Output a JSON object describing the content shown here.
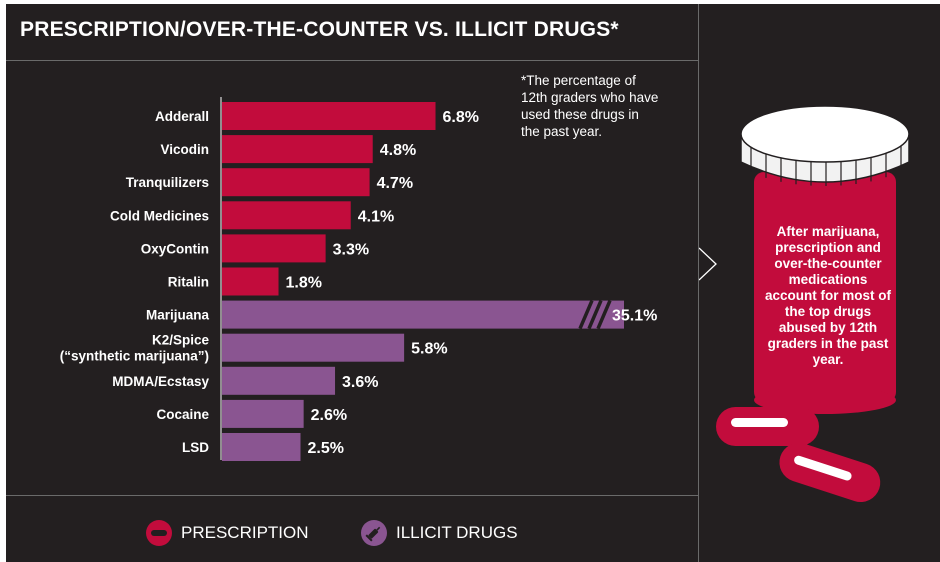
{
  "title": "PRESCRIPTION/OVER-THE-COUNTER VS. ILLICIT DRUGS*",
  "footnote": "*The percentage of\n12th graders who have\nused these drugs in\nthe past year.",
  "callout": "After marijuana, prescription and over-the-counter medications account for most of the top drugs abused by 12th graders in the past year.",
  "colors": {
    "prescription": "#c20c3c",
    "illicit": "#8a5591",
    "background": "#231f20",
    "text": "#ffffff"
  },
  "legend": {
    "prescription_label": "PRESCRIPTION",
    "prescription_icon": "pill-capsule-icon",
    "illicit_label": "ILLICIT DRUGS",
    "illicit_icon": "syringe-icon"
  },
  "chart_data": {
    "type": "bar",
    "orientation": "horizontal",
    "unit": "%",
    "title": "PRESCRIPTION/OVER-THE-COUNTER VS. ILLICIT DRUGS*",
    "categories": [
      "Adderall",
      "Vicodin",
      "Tranquilizers",
      "Cold Medicines",
      "OxyContin",
      "Ritalin",
      "Marijuana",
      "K2/Spice\n(“synthetic marijuana”)",
      "MDMA/Ecstasy",
      "Cocaine",
      "LSD"
    ],
    "values": [
      6.8,
      4.8,
      4.7,
      4.1,
      3.3,
      1.8,
      35.1,
      5.8,
      3.6,
      2.6,
      2.5
    ],
    "labels": [
      "6.8%",
      "4.8%",
      "4.7%",
      "4.1%",
      "3.3%",
      "1.8%",
      "35.1%",
      "5.8%",
      "3.6%",
      "2.6%",
      "2.5%"
    ],
    "groups": [
      "prescription",
      "prescription",
      "prescription",
      "prescription",
      "prescription",
      "prescription",
      "illicit",
      "illicit",
      "illicit",
      "illicit",
      "illicit"
    ],
    "broken_axis_bar": "Marijuana",
    "legend": [
      "PRESCRIPTION",
      "ILLICIT DRUGS"
    ],
    "legend_position": "bottom",
    "grid": false
  }
}
